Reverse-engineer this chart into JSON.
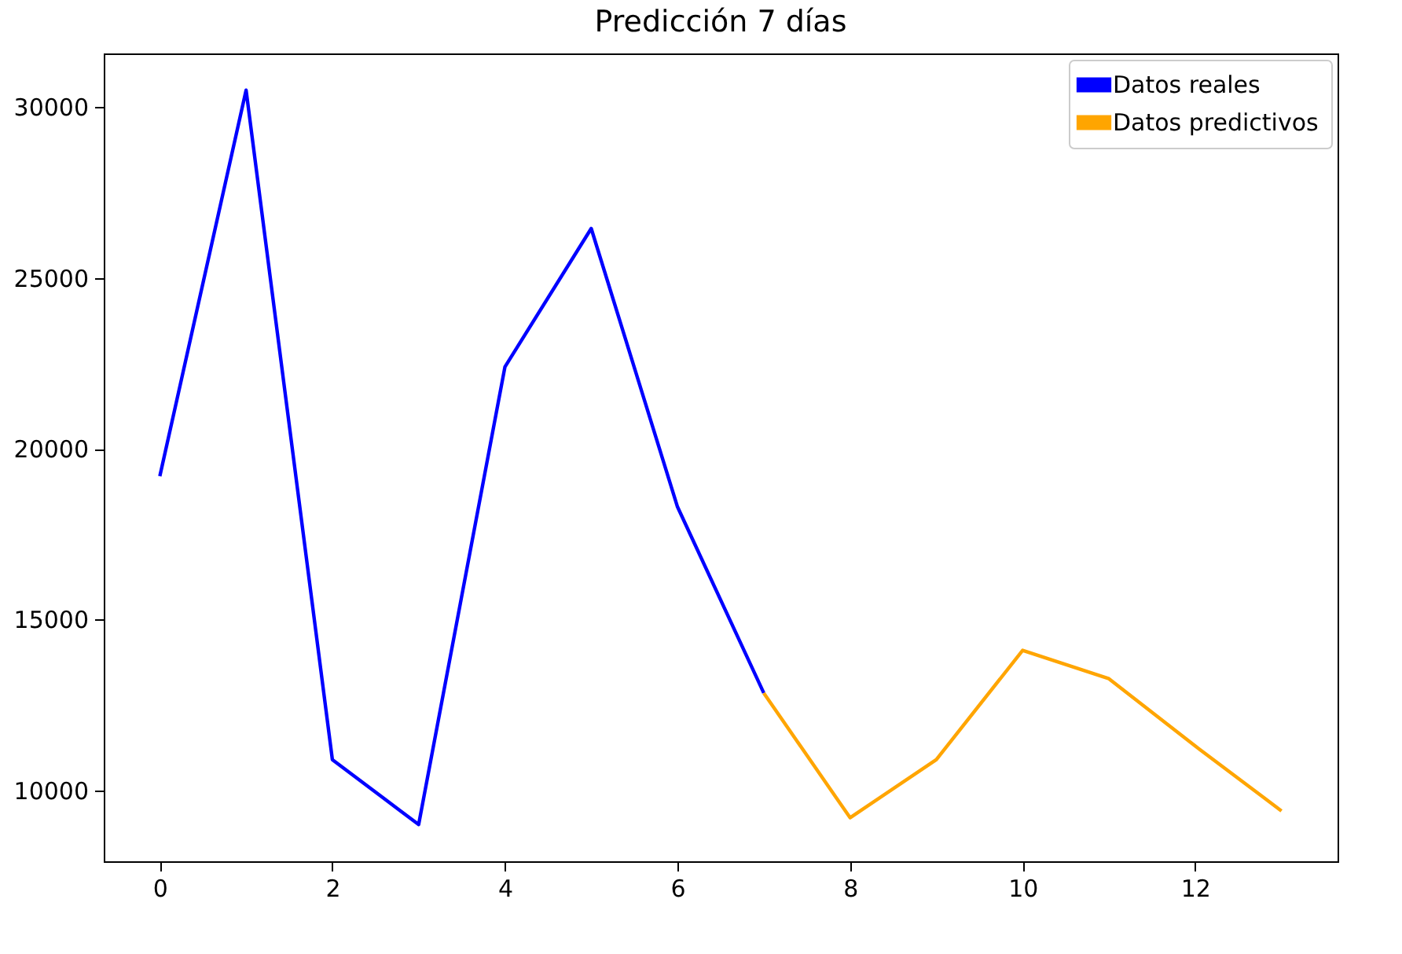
{
  "chart_data": {
    "type": "line",
    "title": "Predicción 7 días",
    "xlim": [
      -0.65,
      13.65
    ],
    "ylim": [
      7925,
      31575
    ],
    "xticks": [
      0,
      2,
      4,
      6,
      8,
      10,
      12
    ],
    "yticks": [
      10000,
      15000,
      20000,
      25000,
      30000
    ],
    "grid": false,
    "legend": "top right",
    "marker": "none",
    "line_style": "solid",
    "series": [
      {
        "name": "Datos reales",
        "color": "#0000ff",
        "x": [
          0,
          1,
          2,
          3,
          4,
          5,
          6,
          7
        ],
        "values": [
          19200,
          30500,
          10900,
          9000,
          22400,
          26450,
          18300,
          12850
        ]
      },
      {
        "name": "Datos predictivos",
        "color": "#ffa500",
        "x": [
          7,
          8,
          9,
          10,
          11,
          12,
          13
        ],
        "values": [
          12850,
          9200,
          10900,
          14100,
          13270,
          11300,
          9400
        ]
      }
    ]
  }
}
